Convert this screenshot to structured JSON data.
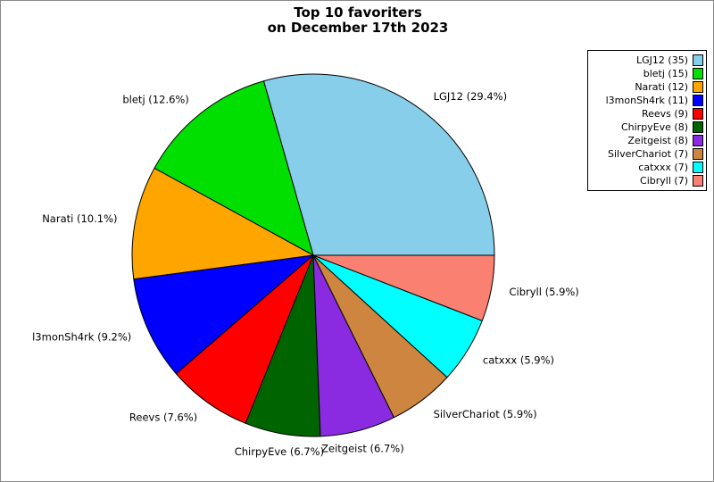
{
  "title": {
    "line1": "Top 10 favoriters",
    "line2": "on December 17th 2023"
  },
  "colors": {
    "background": "#ffffff",
    "figure_border": "#8a8a8a",
    "slice_edge": "#000000",
    "text": "#000000",
    "legend_border": "#000000"
  },
  "chart_data": {
    "type": "pie",
    "title": "Top 10 favoriters on December 17th 2023",
    "total": 119,
    "start_angle_deg": 0,
    "direction": "counterclockwise",
    "label_distance": 1.1,
    "legend_position": "upper-right",
    "slices": [
      {
        "name": "LGJ12",
        "value": 35,
        "percent": 29.4,
        "pie_label": "LGJ12 (29.4%)",
        "legend_label": "LGJ12 (35)",
        "color": "#87CEEB"
      },
      {
        "name": "bletj",
        "value": 15,
        "percent": 12.6,
        "pie_label": "bletj (12.6%)",
        "legend_label": "bletj (15)",
        "color": "#00DF00"
      },
      {
        "name": "Narati",
        "value": 12,
        "percent": 10.1,
        "pie_label": "Narati (10.1%)",
        "legend_label": "Narati (12)",
        "color": "#FFA500"
      },
      {
        "name": "l3monSh4rk",
        "value": 11,
        "percent": 9.2,
        "pie_label": "l3monSh4rk (9.2%)",
        "legend_label": "l3monSh4rk (11)",
        "color": "#0000FF"
      },
      {
        "name": "Reevs",
        "value": 9,
        "percent": 7.6,
        "pie_label": "Reevs (7.6%)",
        "legend_label": "Reevs (9)",
        "color": "#FF0000"
      },
      {
        "name": "ChirpyEve",
        "value": 8,
        "percent": 6.7,
        "pie_label": "ChirpyEve (6.7%)",
        "legend_label": "ChirpyEve (8)",
        "color": "#006400"
      },
      {
        "name": "Zeitgeist",
        "value": 8,
        "percent": 6.7,
        "pie_label": "Zeitgeist (6.7%)",
        "legend_label": "Zeitgeist (8)",
        "color": "#8A2BE2"
      },
      {
        "name": "SilverChariot",
        "value": 7,
        "percent": 5.9,
        "pie_label": "SilverChariot (5.9%)",
        "legend_label": "SilverChariot (7)",
        "color": "#CD853F"
      },
      {
        "name": "catxxx",
        "value": 7,
        "percent": 5.9,
        "pie_label": "catxxx (5.9%)",
        "legend_label": "catxxx (7)",
        "color": "#00FFFF"
      },
      {
        "name": "Cibryll",
        "value": 7,
        "percent": 5.9,
        "pie_label": "Cibryll (5.9%)",
        "legend_label": "Cibryll (7)",
        "color": "#FA8072"
      }
    ]
  }
}
